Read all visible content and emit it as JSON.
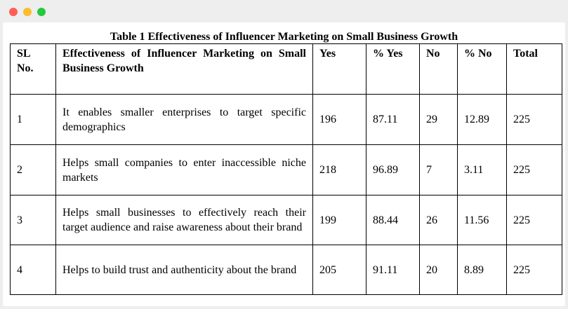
{
  "caption": "Table 1 Effectiveness of Influencer Marketing on Small Business Growth",
  "columns": {
    "sl": "SL No.",
    "desc": "Effectiveness of Influencer Marketing on Small Business Growth",
    "yes": "Yes",
    "pct_yes": "% Yes",
    "no": "No",
    "pct_no": "% No",
    "total": "Total"
  },
  "rows": [
    {
      "sl": "1",
      "desc": "It enables smaller enterprises to target specific demographics",
      "yes": "196",
      "pct_yes": "87.11",
      "no": "29",
      "pct_no": "12.89",
      "total": "225"
    },
    {
      "sl": "2",
      "desc": "Helps small companies to enter inaccessible niche markets",
      "yes": "218",
      "pct_yes": "96.89",
      "no": "7",
      "pct_no": "3.11",
      "total": "225"
    },
    {
      "sl": "3",
      "desc": "Helps small businesses to effectively reach their target audience and raise awareness about their brand",
      "yes": "199",
      "pct_yes": "88.44",
      "no": "26",
      "pct_no": "11.56",
      "total": "225"
    },
    {
      "sl": "4",
      "desc": "Helps to build trust and authenticity about the brand",
      "yes": "205",
      "pct_yes": "91.11",
      "no": "20",
      "pct_no": "8.89",
      "total": "225"
    }
  ]
}
